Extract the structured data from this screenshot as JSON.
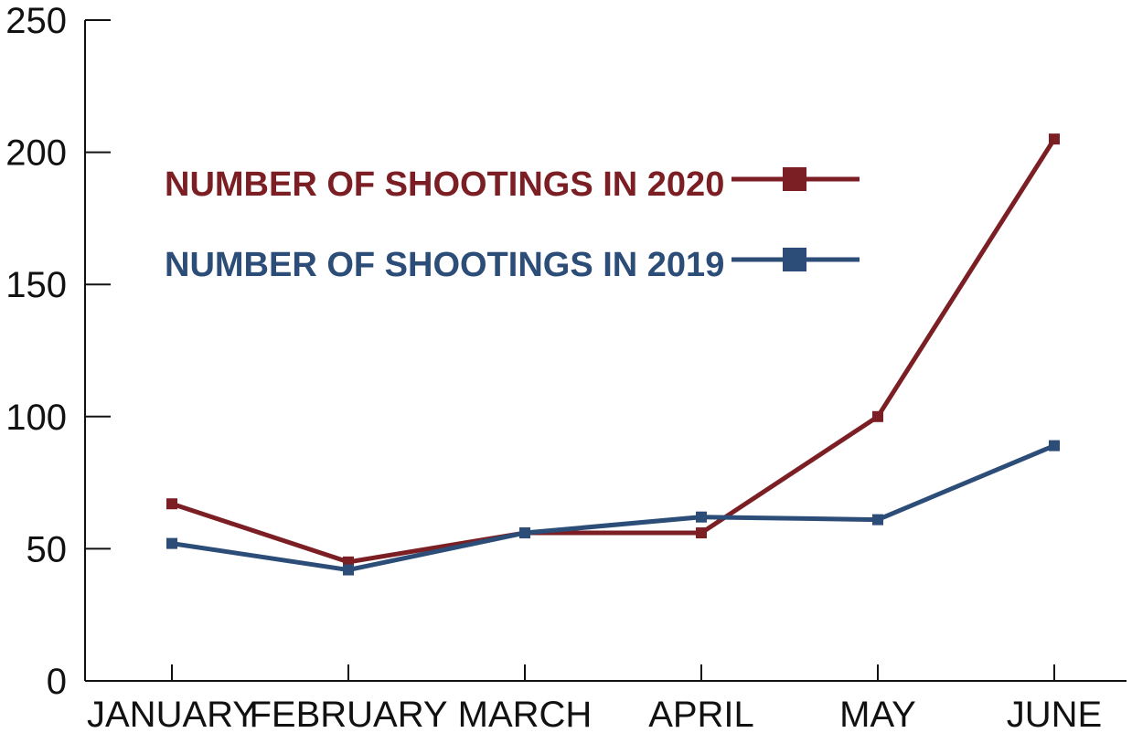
{
  "chart_data": {
    "type": "line",
    "categories": [
      "JANUARY",
      "FEBRUARY",
      "MARCH",
      "APRIL",
      "MAY",
      "JUNE"
    ],
    "series": [
      {
        "name": "NUMBER OF SHOOTINGS IN 2020",
        "color": "#7b1f24",
        "values": [
          67,
          45,
          56,
          56,
          100,
          205
        ]
      },
      {
        "name": "NUMBER OF SHOOTINGS IN 2019",
        "color": "#2b4d78",
        "values": [
          52,
          42,
          56,
          62,
          61,
          89
        ]
      }
    ],
    "y_ticks": [
      "0",
      "50",
      "100",
      "150",
      "200",
      "250"
    ],
    "ylim": [
      0,
      250
    ],
    "title": "",
    "xlabel": "",
    "ylabel": "",
    "grid": false,
    "legend_position": "top-left",
    "axis_color": "#111111"
  }
}
